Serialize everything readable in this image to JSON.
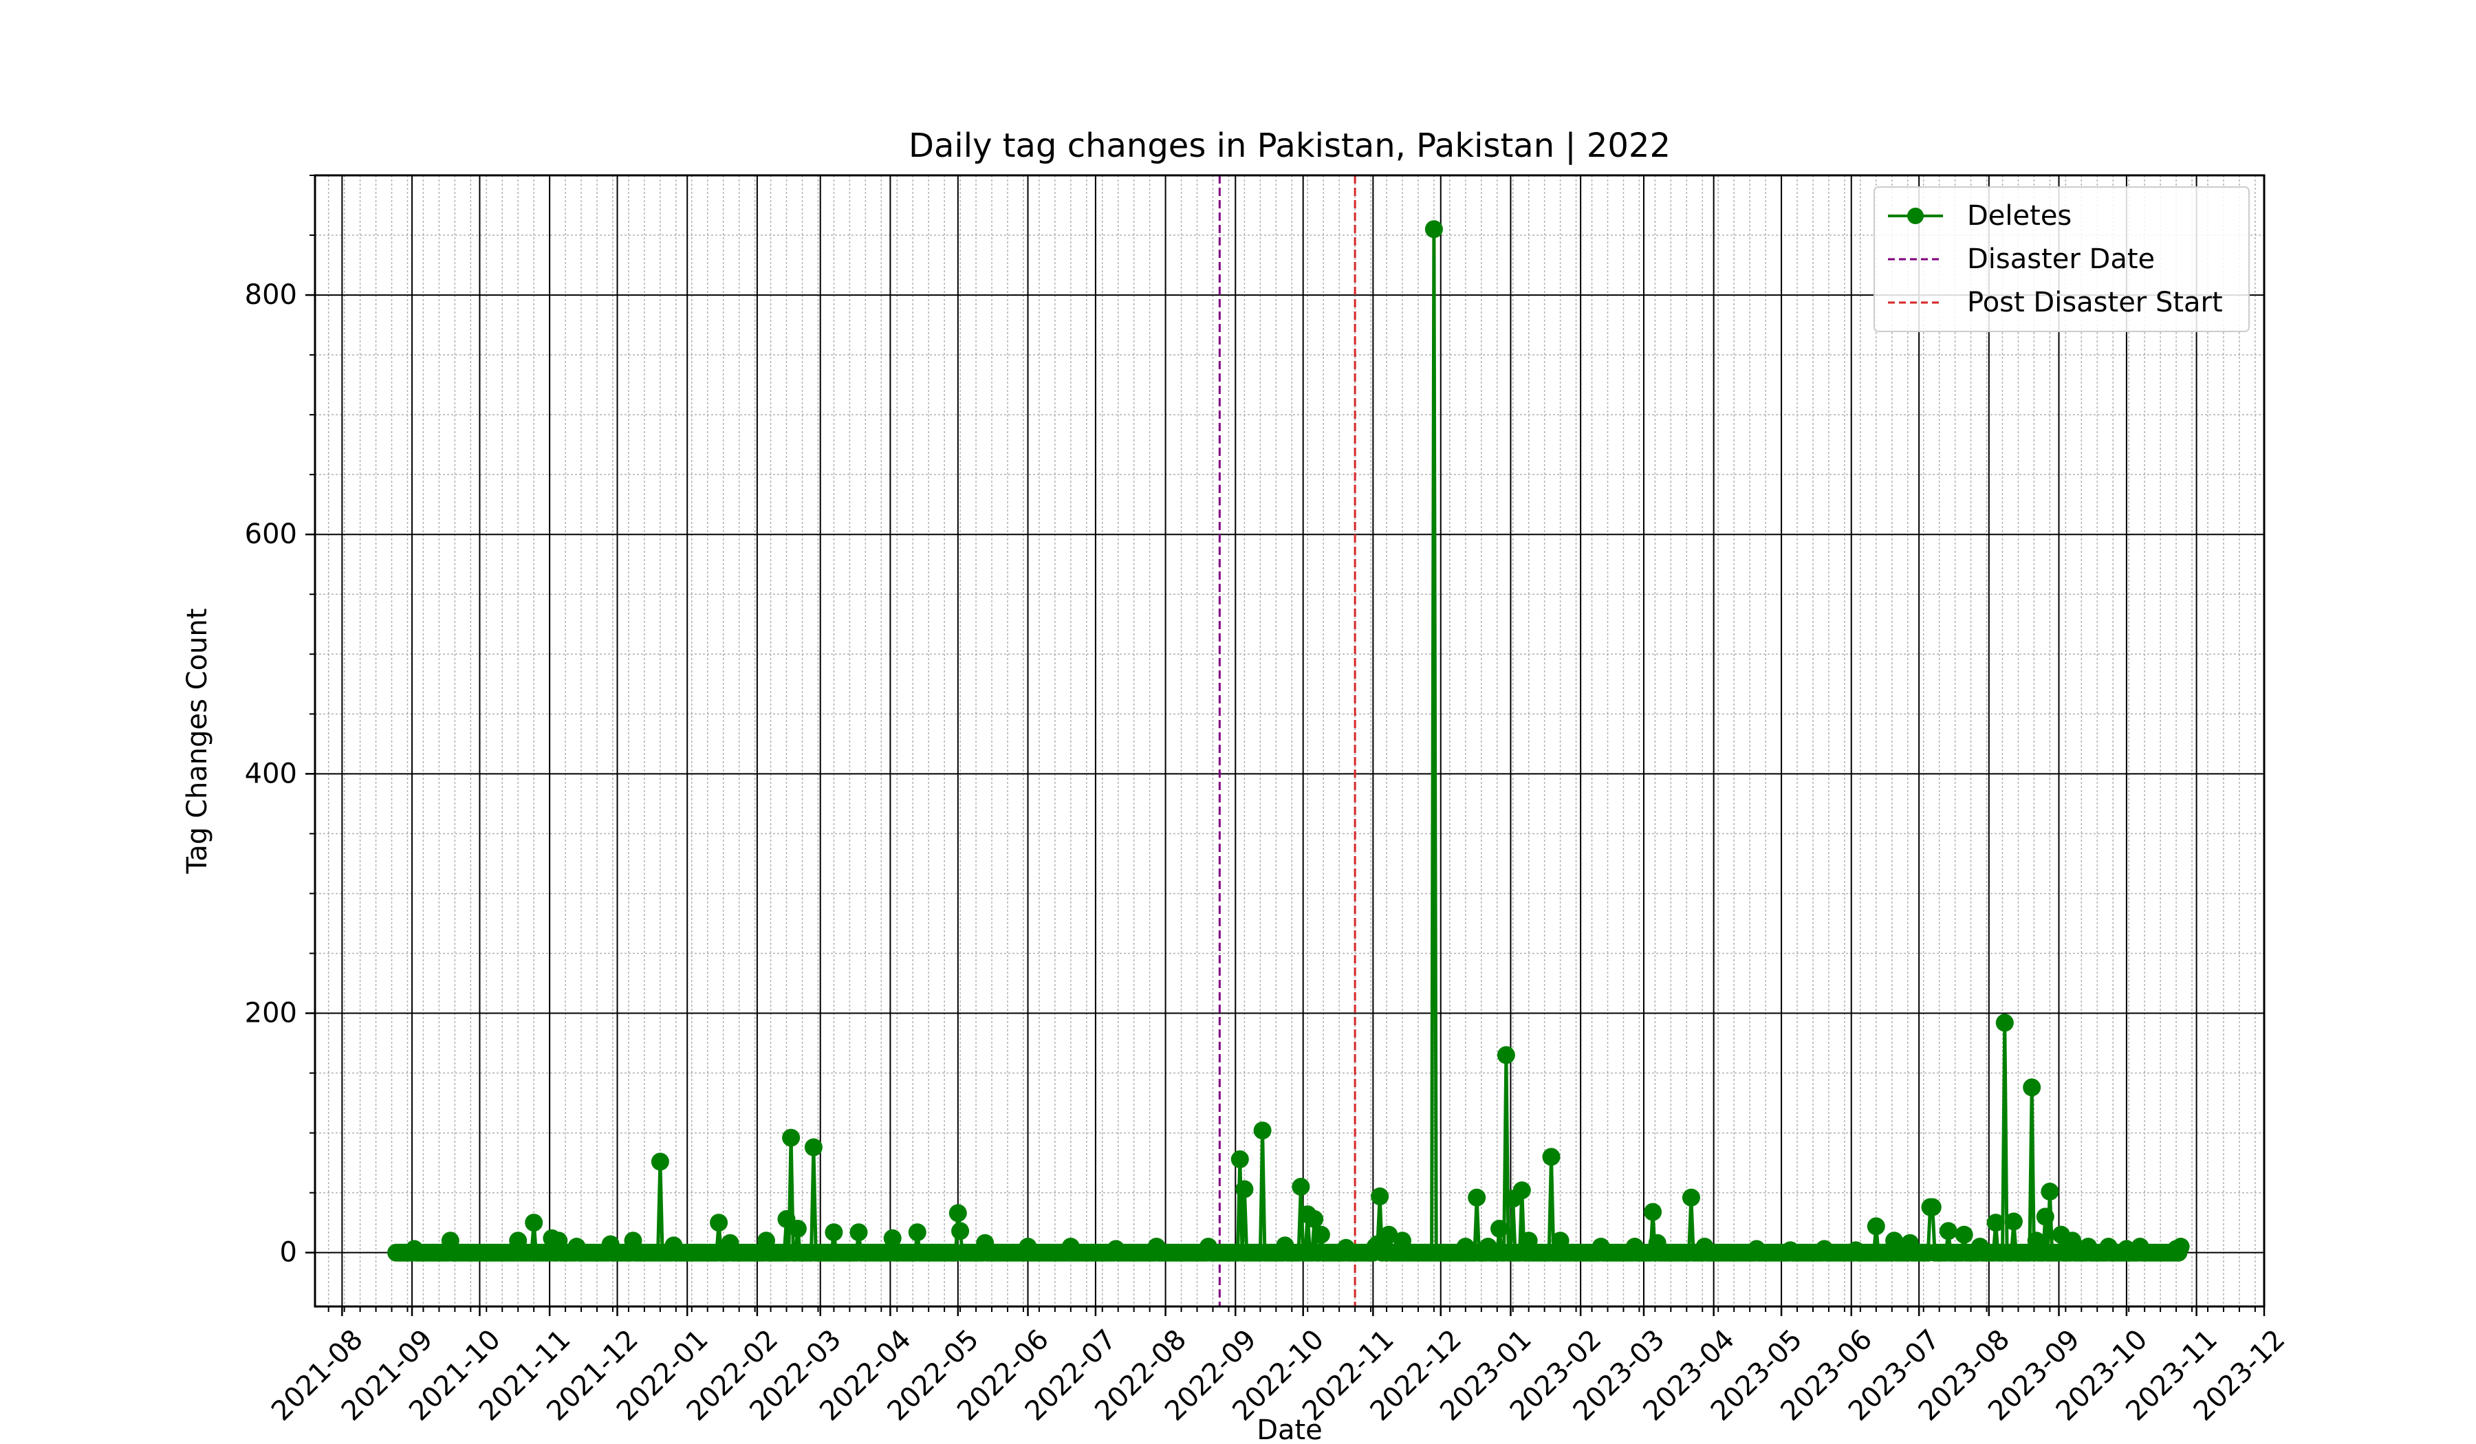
{
  "chart_data": {
    "type": "line",
    "title": "Daily tag changes in Pakistan, Pakistan | 2022",
    "xlabel": "Date",
    "ylabel": "Tag Changes Count",
    "x_range": [
      "2021-07-20",
      "2023-12-01"
    ],
    "ylim": [
      -45,
      900
    ],
    "y_ticks": [
      0,
      200,
      400,
      600,
      800
    ],
    "x_tick_labels": [
      "2021-08",
      "2021-09",
      "2021-10",
      "2021-11",
      "2021-12",
      "2022-01",
      "2022-02",
      "2022-03",
      "2022-04",
      "2022-05",
      "2022-06",
      "2022-07",
      "2022-08",
      "2022-09",
      "2022-10",
      "2022-11",
      "2022-12",
      "2023-01",
      "2023-02",
      "2023-03",
      "2023-04",
      "2023-05",
      "2023-06",
      "2023-07",
      "2023-08",
      "2023-09",
      "2023-10",
      "2023-11",
      "2023-12"
    ],
    "grid": "major and minor",
    "legend_position": "top-right",
    "colors": {
      "series": "#008000",
      "disaster": "#800080",
      "post": "#d62728"
    },
    "series": [
      {
        "name": "Deletes",
        "baseline": {
          "start": "2021-08-25",
          "end": "2023-10-25",
          "value": 0
        },
        "points": [
          [
            "2021-09-02",
            3
          ],
          [
            "2021-09-18",
            10
          ],
          [
            "2021-10-18",
            10
          ],
          [
            "2021-10-25",
            25
          ],
          [
            "2021-11-02",
            12
          ],
          [
            "2021-11-05",
            10
          ],
          [
            "2021-11-13",
            5
          ],
          [
            "2021-11-28",
            7
          ],
          [
            "2021-12-08",
            10
          ],
          [
            "2021-12-20",
            76
          ],
          [
            "2021-12-26",
            6
          ],
          [
            "2022-01-15",
            25
          ],
          [
            "2022-01-20",
            8
          ],
          [
            "2022-02-05",
            10
          ],
          [
            "2022-02-14",
            28
          ],
          [
            "2022-02-16",
            96
          ],
          [
            "2022-02-19",
            20
          ],
          [
            "2022-02-26",
            88
          ],
          [
            "2022-03-07",
            17
          ],
          [
            "2022-03-18",
            17
          ],
          [
            "2022-04-02",
            12
          ],
          [
            "2022-04-13",
            17
          ],
          [
            "2022-05-01",
            33
          ],
          [
            "2022-05-02",
            18
          ],
          [
            "2022-05-13",
            8
          ],
          [
            "2022-06-01",
            5
          ],
          [
            "2022-06-20",
            5
          ],
          [
            "2022-07-10",
            3
          ],
          [
            "2022-07-28",
            5
          ],
          [
            "2022-08-20",
            5
          ],
          [
            "2022-09-03",
            78
          ],
          [
            "2022-09-05",
            53
          ],
          [
            "2022-09-13",
            102
          ],
          [
            "2022-09-23",
            6
          ],
          [
            "2022-09-30",
            55
          ],
          [
            "2022-10-03",
            32
          ],
          [
            "2022-10-06",
            28
          ],
          [
            "2022-10-09",
            15
          ],
          [
            "2022-10-20",
            4
          ],
          [
            "2022-11-02",
            5
          ],
          [
            "2022-11-03",
            7
          ],
          [
            "2022-11-04",
            47
          ],
          [
            "2022-11-06",
            10
          ],
          [
            "2022-11-08",
            15
          ],
          [
            "2022-11-14",
            10
          ],
          [
            "2022-11-28",
            855
          ],
          [
            "2022-12-12",
            5
          ],
          [
            "2022-12-17",
            46
          ],
          [
            "2022-12-22",
            5
          ],
          [
            "2022-12-27",
            20
          ],
          [
            "2022-12-30",
            165
          ],
          [
            "2023-01-02",
            45
          ],
          [
            "2023-01-06",
            52
          ],
          [
            "2023-01-09",
            10
          ],
          [
            "2023-01-19",
            80
          ],
          [
            "2023-01-23",
            10
          ],
          [
            "2023-02-10",
            5
          ],
          [
            "2023-02-25",
            5
          ],
          [
            "2023-03-05",
            34
          ],
          [
            "2023-03-07",
            8
          ],
          [
            "2023-03-22",
            46
          ],
          [
            "2023-03-28",
            5
          ],
          [
            "2023-04-20",
            3
          ],
          [
            "2023-05-05",
            2
          ],
          [
            "2023-05-20",
            3
          ],
          [
            "2023-06-03",
            2
          ],
          [
            "2023-06-12",
            22
          ],
          [
            "2023-06-20",
            10
          ],
          [
            "2023-06-27",
            8
          ],
          [
            "2023-07-06",
            38
          ],
          [
            "2023-07-07",
            38
          ],
          [
            "2023-07-14",
            18
          ],
          [
            "2023-07-21",
            15
          ],
          [
            "2023-07-28",
            5
          ],
          [
            "2023-08-04",
            25
          ],
          [
            "2023-08-08",
            192
          ],
          [
            "2023-08-12",
            26
          ],
          [
            "2023-08-20",
            138
          ],
          [
            "2023-08-22",
            10
          ],
          [
            "2023-08-26",
            30
          ],
          [
            "2023-08-28",
            51
          ],
          [
            "2023-09-02",
            15
          ],
          [
            "2023-09-07",
            10
          ],
          [
            "2023-09-14",
            5
          ],
          [
            "2023-09-23",
            5
          ],
          [
            "2023-10-01",
            3
          ],
          [
            "2023-10-07",
            5
          ],
          [
            "2023-10-23",
            3
          ],
          [
            "2023-10-25",
            5
          ]
        ]
      }
    ],
    "vlines": [
      {
        "name": "Disaster Date",
        "x": "2022-08-25",
        "style": "dashed"
      },
      {
        "name": "Post Disaster Start",
        "x": "2022-10-24",
        "style": "dashed"
      }
    ]
  }
}
